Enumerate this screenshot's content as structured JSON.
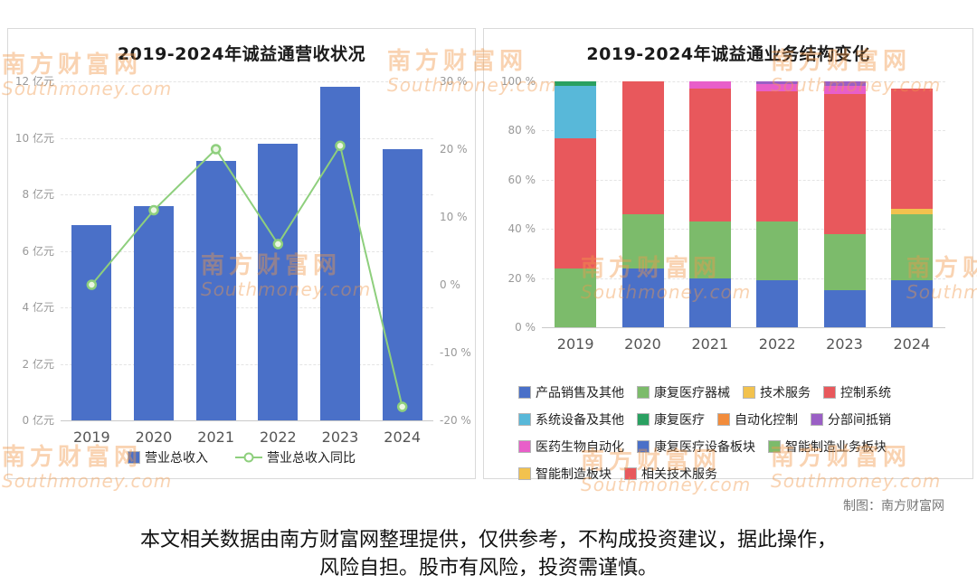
{
  "watermark": {
    "line1": "南方财富网",
    "line2": "Southmoney.com"
  },
  "footer": {
    "credit": "制图：南方财富网",
    "disclaimer": "本文相关数据由南方财富网整理提供，仅供参考，不构成投资建议，据此操作，风险自担。股市有风险，投资需谨慎。"
  },
  "chart_data": [
    {
      "type": "bar+line",
      "title": "2019-2024年诚益通营收状况",
      "categories": [
        "2019",
        "2020",
        "2021",
        "2022",
        "2023",
        "2024"
      ],
      "bar_series": {
        "name": "营业总收入",
        "unit": "亿元",
        "color": "#4a70c8",
        "values": [
          6.9,
          7.6,
          9.2,
          9.8,
          11.8,
          9.6
        ]
      },
      "line_series": {
        "name": "营业总收入同比",
        "unit": "%",
        "color": "#8ecf7d",
        "values": [
          0,
          11,
          20,
          6,
          20.5,
          -18
        ]
      },
      "left_axis": {
        "min": 0,
        "max": 12,
        "ticks": [
          "0 亿元",
          "2 亿元",
          "4 亿元",
          "6 亿元",
          "8 亿元",
          "10 亿元",
          "12 亿元"
        ]
      },
      "right_axis": {
        "min": -20,
        "max": 30,
        "ticks": [
          "-20 %",
          "-10 %",
          "0 %",
          "10 %",
          "20 %",
          "30 %"
        ]
      },
      "grid": true,
      "legend_position": "bottom"
    },
    {
      "type": "stacked-bar",
      "title": "2019-2024年诚益通业务结构变化",
      "categories": [
        "2019",
        "2020",
        "2021",
        "2022",
        "2023",
        "2024"
      ],
      "y_axis": {
        "min": 0,
        "max": 100,
        "ticks": [
          "0 %",
          "20 %",
          "40 %",
          "60 %",
          "80 %",
          "100 %"
        ]
      },
      "grid": true,
      "legend_position": "bottom",
      "legend": [
        {
          "label": "产品销售及其他",
          "color": "#4a70c8"
        },
        {
          "label": "康复医疗器械",
          "color": "#7cbb6b"
        },
        {
          "label": "技术服务",
          "color": "#f2c24e"
        },
        {
          "label": "控制系统",
          "color": "#e8585c"
        },
        {
          "label": "系统设备及其他",
          "color": "#58b8d9"
        },
        {
          "label": "康复医疗",
          "color": "#2aa061"
        },
        {
          "label": "自动化控制",
          "color": "#f28c3c"
        },
        {
          "label": "分部间抵销",
          "color": "#9a5fc5"
        },
        {
          "label": "医药生物自动化",
          "color": "#e85fc9"
        },
        {
          "label": "康复医疗设备板块",
          "color": "#4a70c8"
        },
        {
          "label": "智能制造业务板块",
          "color": "#7cbb6b"
        },
        {
          "label": "智能制造板块",
          "color": "#f2c24e"
        },
        {
          "label": "相关技术服务",
          "color": "#e8585c"
        }
      ],
      "bars": [
        {
          "year": "2019",
          "segments": [
            {
              "label": "康复医疗器械",
              "color": "#7cbb6b",
              "value": 24
            },
            {
              "label": "控制系统",
              "color": "#e8585c",
              "value": 53
            },
            {
              "label": "系统设备及其他",
              "color": "#58b8d9",
              "value": 21
            },
            {
              "label": "康复医疗",
              "color": "#2aa061",
              "value": 2
            }
          ]
        },
        {
          "year": "2020",
          "segments": [
            {
              "label": "产品销售及其他",
              "color": "#4a70c8",
              "value": 24
            },
            {
              "label": "康复医疗器械",
              "color": "#7cbb6b",
              "value": 22
            },
            {
              "label": "控制系统",
              "color": "#e8585c",
              "value": 54
            }
          ]
        },
        {
          "year": "2021",
          "segments": [
            {
              "label": "产品销售及其他",
              "color": "#4a70c8",
              "value": 20
            },
            {
              "label": "康复医疗器械",
              "color": "#7cbb6b",
              "value": 23
            },
            {
              "label": "控制系统",
              "color": "#e8585c",
              "value": 54
            },
            {
              "label": "医药生物自动化",
              "color": "#e85fc9",
              "value": 3
            }
          ]
        },
        {
          "year": "2022",
          "segments": [
            {
              "label": "产品销售及其他",
              "color": "#4a70c8",
              "value": 19
            },
            {
              "label": "康复医疗器械",
              "color": "#7cbb6b",
              "value": 24
            },
            {
              "label": "控制系统",
              "color": "#e8585c",
              "value": 53
            },
            {
              "label": "医药生物自动化",
              "color": "#e85fc9",
              "value": 3
            },
            {
              "label": "分部间抵销",
              "color": "#9a5fc5",
              "value": 1
            }
          ]
        },
        {
          "year": "2023",
          "segments": [
            {
              "label": "产品销售及其他",
              "color": "#4a70c8",
              "value": 15
            },
            {
              "label": "康复医疗器械",
              "color": "#7cbb6b",
              "value": 23
            },
            {
              "label": "控制系统",
              "color": "#e8585c",
              "value": 57
            },
            {
              "label": "医药生物自动化",
              "color": "#e85fc9",
              "value": 3
            },
            {
              "label": "分部间抵销",
              "color": "#9a5fc5",
              "value": 2
            }
          ]
        },
        {
          "year": "2024",
          "segments": [
            {
              "label": "康复医疗设备板块",
              "color": "#4a70c8",
              "value": 19
            },
            {
              "label": "智能制造业务板块",
              "color": "#7cbb6b",
              "value": 27
            },
            {
              "label": "智能制造板块",
              "color": "#f2c24e",
              "value": 2
            },
            {
              "label": "相关技术服务",
              "color": "#e8585c",
              "value": 49
            }
          ]
        }
      ]
    }
  ]
}
